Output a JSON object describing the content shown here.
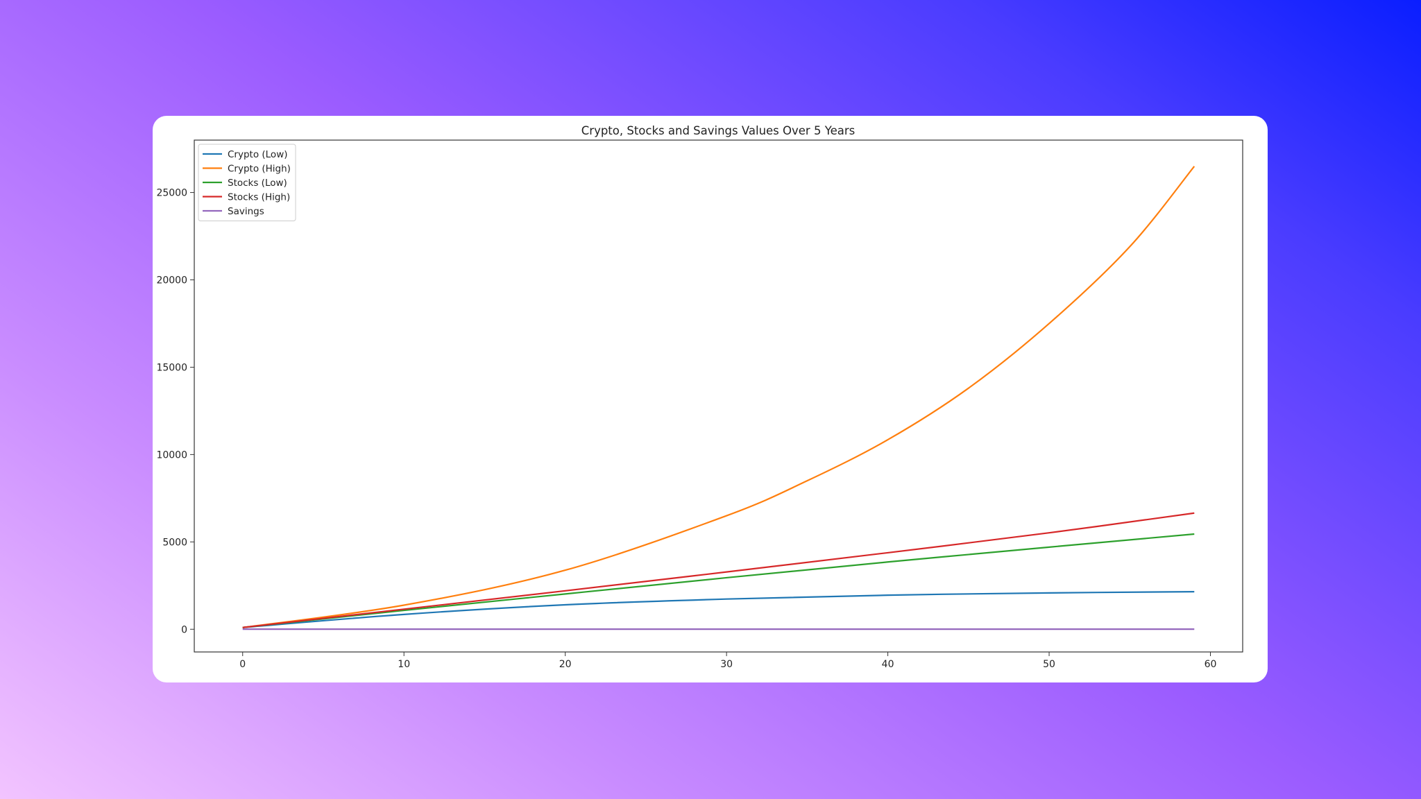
{
  "chart_data": {
    "type": "line",
    "title": "Crypto, Stocks and Savings Values Over 5 Years",
    "xlabel": "",
    "ylabel": "",
    "xlim": [
      -3,
      62
    ],
    "ylim": [
      -1300,
      28000
    ],
    "xticks": [
      0,
      10,
      20,
      30,
      40,
      50,
      60
    ],
    "yticks": [
      0,
      5000,
      10000,
      15000,
      20000,
      25000
    ],
    "grid": false,
    "legend_position": "top-left",
    "series": [
      {
        "name": "Crypto (Low)",
        "color": "#1f77b4",
        "x": [
          0,
          10,
          20,
          30,
          40,
          50,
          59
        ],
        "y": [
          100,
          850,
          1400,
          1730,
          1950,
          2080,
          2150
        ]
      },
      {
        "name": "Crypto (High)",
        "color": "#ff7f0e",
        "x": [
          0,
          10,
          20,
          30,
          35,
          40,
          45,
          50,
          55,
          59
        ],
        "y": [
          100,
          1380,
          3380,
          6500,
          8500,
          10850,
          13800,
          17500,
          21900,
          26500
        ]
      },
      {
        "name": "Stocks (Low)",
        "color": "#2ca02c",
        "x": [
          0,
          10,
          20,
          30,
          40,
          50,
          59
        ],
        "y": [
          100,
          1080,
          2020,
          2950,
          3850,
          4700,
          5450
        ]
      },
      {
        "name": "Stocks (High)",
        "color": "#d62728",
        "x": [
          0,
          10,
          20,
          30,
          40,
          50,
          59
        ],
        "y": [
          100,
          1150,
          2200,
          3280,
          4380,
          5520,
          6650
        ]
      },
      {
        "name": "Savings",
        "color": "#9467bd",
        "x": [
          0,
          10,
          20,
          30,
          40,
          50,
          59
        ],
        "y": [
          5,
          5,
          5,
          6,
          6,
          6,
          6
        ]
      }
    ]
  }
}
